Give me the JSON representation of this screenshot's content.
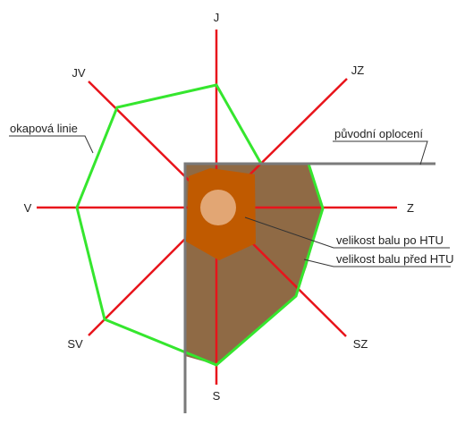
{
  "directions": {
    "north": "J",
    "northeast": "JZ",
    "east": "Z",
    "southeast": "SZ",
    "south": "S",
    "southwest": "SV",
    "west": "V",
    "northwest": "JV"
  },
  "labels": {
    "drip_line": "okapová linie",
    "original_fence": "původní oplocení",
    "ball_after": "velikost balu po HTU",
    "ball_before": "velikost balu před HTU"
  },
  "colors": {
    "axis": "#e8141b",
    "drip_line": "#35e62e",
    "fence": "#7a7a7a",
    "ball_before_fill": "#8f6a45",
    "ball_after_fill": "#c05a00",
    "trunk": "#e2a674",
    "leader": "#333333"
  }
}
